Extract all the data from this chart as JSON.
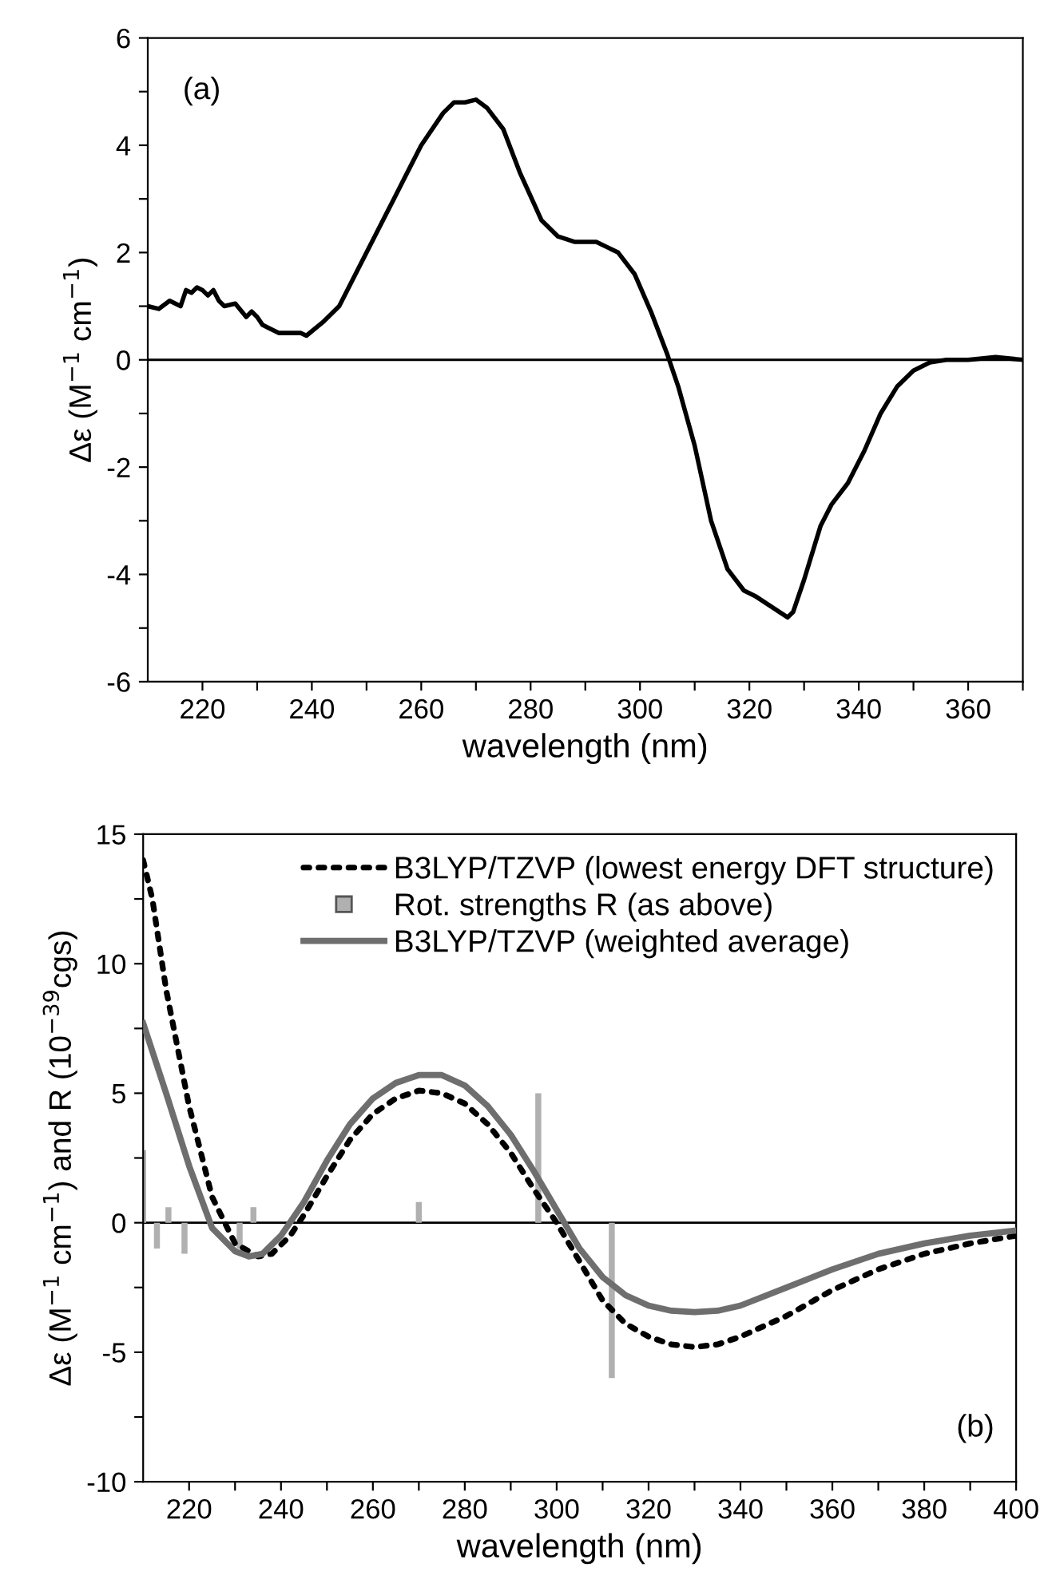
{
  "chart_data": [
    {
      "type": "line",
      "xlabel": "wavelength (nm)",
      "ylabel": "Δε (M$^{−1}$ cm$^{−1}$)",
      "annotations": [
        "(a)"
      ],
      "xlim": [
        210,
        370
      ],
      "ylim": [
        -6,
        6
      ],
      "xticks": [
        220,
        {
          "value": 230,
          "label": null
        },
        240,
        {
          "value": 250,
          "label": null
        },
        260,
        {
          "value": 270,
          "label": null
        },
        280,
        {
          "value": 290,
          "label": null
        },
        300,
        {
          "value": 310,
          "label": null
        },
        320,
        {
          "value": 330,
          "label": null
        },
        340,
        {
          "value": 350,
          "label": null
        },
        360,
        {
          "value": 370,
          "label": null
        }
      ],
      "yticks": [
        -6,
        {
          "value": -5,
          "label": null
        },
        -4,
        {
          "value": -3,
          "label": null
        },
        -2,
        {
          "value": -1,
          "label": null
        },
        0,
        {
          "value": 1,
          "label": null
        },
        2,
        {
          "value": 3,
          "label": null
        },
        4,
        {
          "value": 5,
          "label": null
        },
        6
      ],
      "ref_lines": [
        {
          "axis": "y",
          "value": 0,
          "color": "#000000"
        }
      ],
      "grid": false,
      "legend": false,
      "line_style": "solid",
      "marker": "none",
      "series": [
        {
          "color": "#000000",
          "x": [
            210,
            212,
            214,
            216,
            217,
            218,
            219,
            220,
            221,
            222,
            223,
            224,
            226,
            228,
            229,
            230,
            231,
            232,
            234,
            236,
            238,
            239,
            242,
            245,
            250,
            255,
            260,
            264,
            266,
            268,
            270,
            272,
            275,
            278,
            282,
            285,
            288,
            292,
            296,
            299,
            302,
            305,
            307,
            310,
            313,
            316,
            319,
            321,
            324,
            327,
            328,
            330,
            333,
            335,
            338,
            341,
            344,
            347,
            350,
            353,
            356,
            360,
            365,
            370
          ],
          "values": [
            1.0,
            0.95,
            1.1,
            1.0,
            1.3,
            1.25,
            1.35,
            1.3,
            1.2,
            1.3,
            1.1,
            1.0,
            1.05,
            0.8,
            0.9,
            0.8,
            0.65,
            0.6,
            0.5,
            0.5,
            0.5,
            0.45,
            0.7,
            1.0,
            2.0,
            3.0,
            4.0,
            4.6,
            4.8,
            4.8,
            4.85,
            4.7,
            4.3,
            3.5,
            2.6,
            2.3,
            2.2,
            2.2,
            2.0,
            1.6,
            0.9,
            0.1,
            -0.5,
            -1.6,
            -3.0,
            -3.9,
            -4.3,
            -4.4,
            -4.6,
            -4.8,
            -4.7,
            -4.1,
            -3.1,
            -2.7,
            -2.3,
            -1.7,
            -1.0,
            -0.5,
            -0.2,
            -0.05,
            0,
            0,
            0.05,
            0
          ]
        }
      ]
    },
    {
      "type": "line",
      "xlabel": "wavelength (nm)",
      "ylabel": "Δε (M$^{−1}$ cm$^{−1}$) and R (10$^{−39}$cgs)",
      "annotations": [
        "(b)"
      ],
      "xlim": [
        210,
        400
      ],
      "ylim": [
        -10,
        15
      ],
      "xticks": [
        220,
        {
          "value": 230,
          "label": null
        },
        240,
        {
          "value": 250,
          "label": null
        },
        260,
        {
          "value": 270,
          "label": null
        },
        280,
        {
          "value": 290,
          "label": null
        },
        300,
        {
          "value": 310,
          "label": null
        },
        320,
        {
          "value": 330,
          "label": null
        },
        340,
        {
          "value": 350,
          "label": null
        },
        360,
        {
          "value": 370,
          "label": null
        },
        380,
        {
          "value": 390,
          "label": null
        },
        400
      ],
      "yticks": [
        -10,
        {
          "value": -7.5,
          "label": null
        },
        -5,
        {
          "value": -2.5,
          "label": null
        },
        0,
        {
          "value": 2.5,
          "label": null
        },
        5,
        {
          "value": 7.5,
          "label": null
        },
        10,
        {
          "value": 12.5,
          "label": null
        },
        15
      ],
      "ref_lines": [
        {
          "axis": "y",
          "value": 0,
          "color": "#000000"
        }
      ],
      "grid": false,
      "legend": "top right",
      "series": [
        {
          "name": "B3LYP/TZVP (lowest energy DFT structure)",
          "type": "line",
          "line_style": "dotted",
          "color": "#000000",
          "x": [
            210,
            212,
            215,
            220,
            225,
            230,
            235,
            238,
            242,
            245,
            250,
            255,
            260,
            265,
            270,
            275,
            280,
            285,
            290,
            295,
            300,
            305,
            310,
            315,
            320,
            325,
            330,
            335,
            340,
            350,
            360,
            370,
            380,
            390,
            400
          ],
          "values": [
            14,
            12.5,
            9,
            4.5,
            1.0,
            -0.8,
            -1.3,
            -1.2,
            -0.5,
            0.3,
            1.8,
            3.2,
            4.2,
            4.8,
            5.1,
            5.0,
            4.6,
            3.8,
            2.7,
            1.3,
            0.0,
            -1.5,
            -3.0,
            -3.9,
            -4.4,
            -4.7,
            -4.8,
            -4.7,
            -4.4,
            -3.6,
            -2.6,
            -1.8,
            -1.2,
            -0.8,
            -0.5
          ]
        },
        {
          "name": "Rot. strengths R (as above)",
          "type": "bar",
          "color": "#b0b0b0",
          "x": [
            210,
            213,
            215.5,
            219,
            231,
            234,
            270,
            296,
            312
          ],
          "values": [
            2.8,
            -1.0,
            0.6,
            -1.2,
            -1.0,
            0.6,
            0.8,
            5.0,
            -6.0
          ]
        },
        {
          "name": "B3LYP/TZVP (weighted average)",
          "type": "line",
          "line_style": "solid",
          "color": "#6e6e6e",
          "x": [
            210,
            215,
            220,
            225,
            230,
            233,
            236,
            240,
            245,
            250,
            255,
            260,
            265,
            270,
            275,
            280,
            285,
            290,
            295,
            300,
            305,
            310,
            315,
            320,
            325,
            330,
            335,
            340,
            350,
            360,
            370,
            380,
            390,
            400
          ],
          "values": [
            7.7,
            5,
            2.2,
            -0.2,
            -1.1,
            -1.3,
            -1.2,
            -0.5,
            0.8,
            2.4,
            3.8,
            4.8,
            5.4,
            5.7,
            5.7,
            5.3,
            4.5,
            3.4,
            2.0,
            0.5,
            -1.0,
            -2.1,
            -2.8,
            -3.2,
            -3.4,
            -3.45,
            -3.4,
            -3.2,
            -2.5,
            -1.8,
            -1.2,
            -0.8,
            -0.5,
            -0.3
          ]
        }
      ]
    }
  ]
}
